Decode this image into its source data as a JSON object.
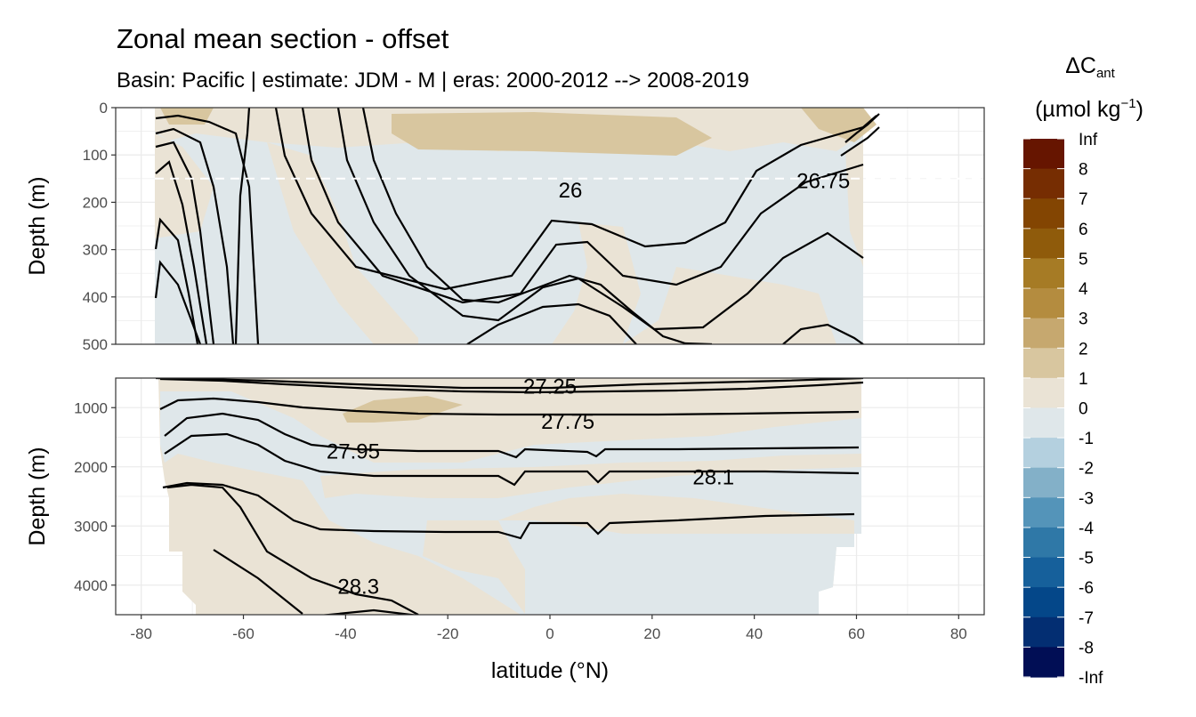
{
  "chart_data": {
    "type": "heatmap",
    "title": "Zonal mean section - offset",
    "subtitle": "Basin: Pacific | estimate: JDM - M | eras: 2000-2012 --> 2008-2019",
    "xlabel": "latitude (°N)",
    "xlim": [
      -85,
      85
    ],
    "x_ticks": [
      -80,
      -60,
      -40,
      -20,
      0,
      20,
      40,
      60,
      80
    ],
    "panels": [
      {
        "name": "upper",
        "ylabel": "Depth (m)",
        "ylim": [
          500,
          0
        ],
        "y_ticks": [
          0,
          100,
          200,
          300,
          400,
          500
        ],
        "reference_depth": 150
      },
      {
        "name": "lower",
        "ylabel": "Depth (m)",
        "ylim": [
          4500,
          500
        ],
        "y_ticks": [
          1000,
          2000,
          3000,
          4000
        ]
      }
    ],
    "legend": {
      "title_main": "ΔC",
      "title_sub": "ant",
      "unit_prefix": "(µmol kg",
      "unit_exp": "−1",
      "unit_suffix": ")",
      "position": "right",
      "labels": [
        "Inf",
        "8",
        "7",
        "6",
        "5",
        "4",
        "3",
        "2",
        "1",
        "0",
        "-1",
        "-2",
        "-3",
        "-4",
        "-5",
        "-6",
        "-7",
        "-8",
        "-Inf"
      ],
      "colors": [
        "#661500",
        "#762d02",
        "#834502",
        "#8f5b0b",
        "#a67b25",
        "#b48c3f",
        "#c6a86f",
        "#d8c69f",
        "#eae3d5",
        "#dfe7ea",
        "#b4d0df",
        "#83b0c8",
        "#5494b9",
        "#2f78a7",
        "#16609b",
        "#044789",
        "#032e72",
        "#010e55"
      ]
    },
    "contour_labels": [
      {
        "text": "26",
        "x": 4,
        "depth": 175
      },
      {
        "text": "26.75",
        "x": 53.5,
        "depth": 155
      },
      {
        "text": "27.25",
        "x": 0,
        "depth": 640
      },
      {
        "text": "27.75",
        "x": 3.5,
        "depth": 1240
      },
      {
        "text": "27.95",
        "x": -38.5,
        "depth": 1740
      },
      {
        "text": "28.1",
        "x": 32,
        "depth": 2180
      },
      {
        "text": "28.3",
        "x": -37.5,
        "depth": 4030
      }
    ],
    "colors": {
      "positive_fill": "#eae3d5",
      "positive_fill_2": "#d8c69f",
      "negative_fill": "#dfe7ea",
      "grid": "#ebebeb",
      "contour": "#000000"
    }
  }
}
